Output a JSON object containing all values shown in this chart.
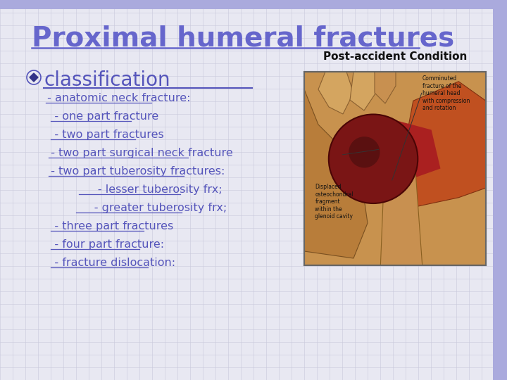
{
  "title": "Proximal humeral fractures",
  "title_color": "#6666cc",
  "title_fontsize": 28,
  "bg_color": "#e8e8f2",
  "grid_color": "#c8c8dc",
  "bullet_label": "classification",
  "bullet_color": "#5555bb",
  "bullet_fontsize": 20,
  "text_color": "#5555bb",
  "text_fontsize": 11.5,
  "image_label": "Post-accident Condition",
  "image_label_color": "#111111",
  "image_label_fontsize": 11,
  "lines": [
    " - anatomic neck fracture:",
    "   - one part fracture",
    "   - two part fractures",
    "  - two part surgical neck fracture",
    "  - two part tuberosity fractures:",
    "               - lesser tuberosity frx;",
    "              - greater tuberosity frx;",
    "   - three part fractures",
    "   - four part fracture:",
    "   - fracture dislocation:"
  ]
}
